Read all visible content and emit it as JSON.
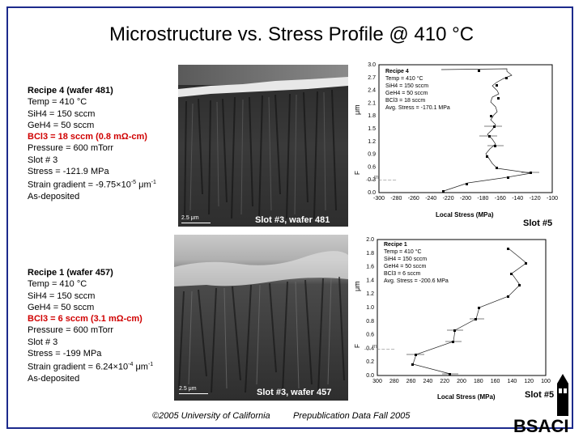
{
  "title": "Microstructure vs. Stress Profile @ 410 °C",
  "recipe4": {
    "head": "Recipe 4 (wafer 481)",
    "lines": [
      "Temp = 410 °C",
      "SiH4 = 150 sccm",
      "GeH4 = 50 sccm"
    ],
    "bcl3": "BCl3 = 18 sccm (0.8 mΩ-cm)",
    "lines2": [
      "Pressure = 600 mTorr",
      "Slot # 3",
      "Stress = -121.9 MPa"
    ],
    "strain_prefix": "Strain gradient = -9.75×10",
    "strain_exp": "-5",
    "strain_unit": " μm",
    "strain_unit_exp": "-1",
    "state": "As-deposited"
  },
  "recipe1": {
    "head": "Recipe 1 (wafer 457)",
    "lines": [
      "Temp = 410 °C",
      "SiH4 = 150 sccm",
      "GeH4 = 50 sccm"
    ],
    "bcl3": "BCl3 = 6 sccm (3.1 mΩ-cm)",
    "lines2": [
      "Pressure = 600 mTorr",
      "Slot # 3",
      "Stress = -199 MPa"
    ],
    "strain_prefix": "Strain gradient = 6.24×10",
    "strain_exp": "-4",
    "strain_unit": " μm",
    "strain_unit_exp": "-1",
    "state": "As-deposited"
  },
  "tem_top": {
    "caption": "Slot #3, wafer 481",
    "scale": "2.5 μm"
  },
  "tem_bottom": {
    "caption": "Slot #3, wafer 457",
    "scale": "2.5 μm"
  },
  "plot_top": {
    "slot_label": "Slot #5",
    "legend": [
      "Recipe 4",
      "Temp = 410 °C",
      "SiH4 = 150 sccm",
      "GeH4 = 50 sccm",
      "BCl3 = 18 sccm",
      "Avg. Stress = -170.1 MPa"
    ],
    "xlabel": "Local Stress (MPa)",
    "ylabel": "μm",
    "yticks": [
      "0.0",
      "0.3",
      "0.6",
      "0.9",
      "1.2",
      "1.5",
      "1.8",
      "2.1",
      "2.4",
      "2.7",
      "3.0"
    ],
    "xticks": [
      "-300",
      "-280",
      "-260",
      "-240",
      "-220",
      "-200",
      "-180",
      "-160",
      "-140",
      "-120",
      "-100"
    ]
  },
  "plot_bottom": {
    "slot_label": "Slot #5",
    "legend": [
      "Recipe 1",
      "Temp = 410 °C",
      "SiH4 = 150 sccm",
      "GeH4 = 50 sccm",
      "BCl3 = 6 sccm",
      "Avg. Stress = -200.6 MPa"
    ],
    "xlabel": "Local Stress (MPa)",
    "ylabel": "μm",
    "yticks": [
      "0.0",
      "0.2",
      "0.4",
      "0.6",
      "0.8",
      "1.0",
      "1.2",
      "1.4",
      "1.6",
      "1.8",
      "2.0"
    ],
    "xticks": [
      "300",
      "280",
      "260",
      "240",
      "220",
      "200",
      "180",
      "160",
      "140",
      "120",
      "100"
    ]
  },
  "footer": {
    "copyright": "©2005 University of California",
    "note": "Prepublication Data Fall 2005"
  },
  "logo": {
    "text": "BSACI"
  }
}
